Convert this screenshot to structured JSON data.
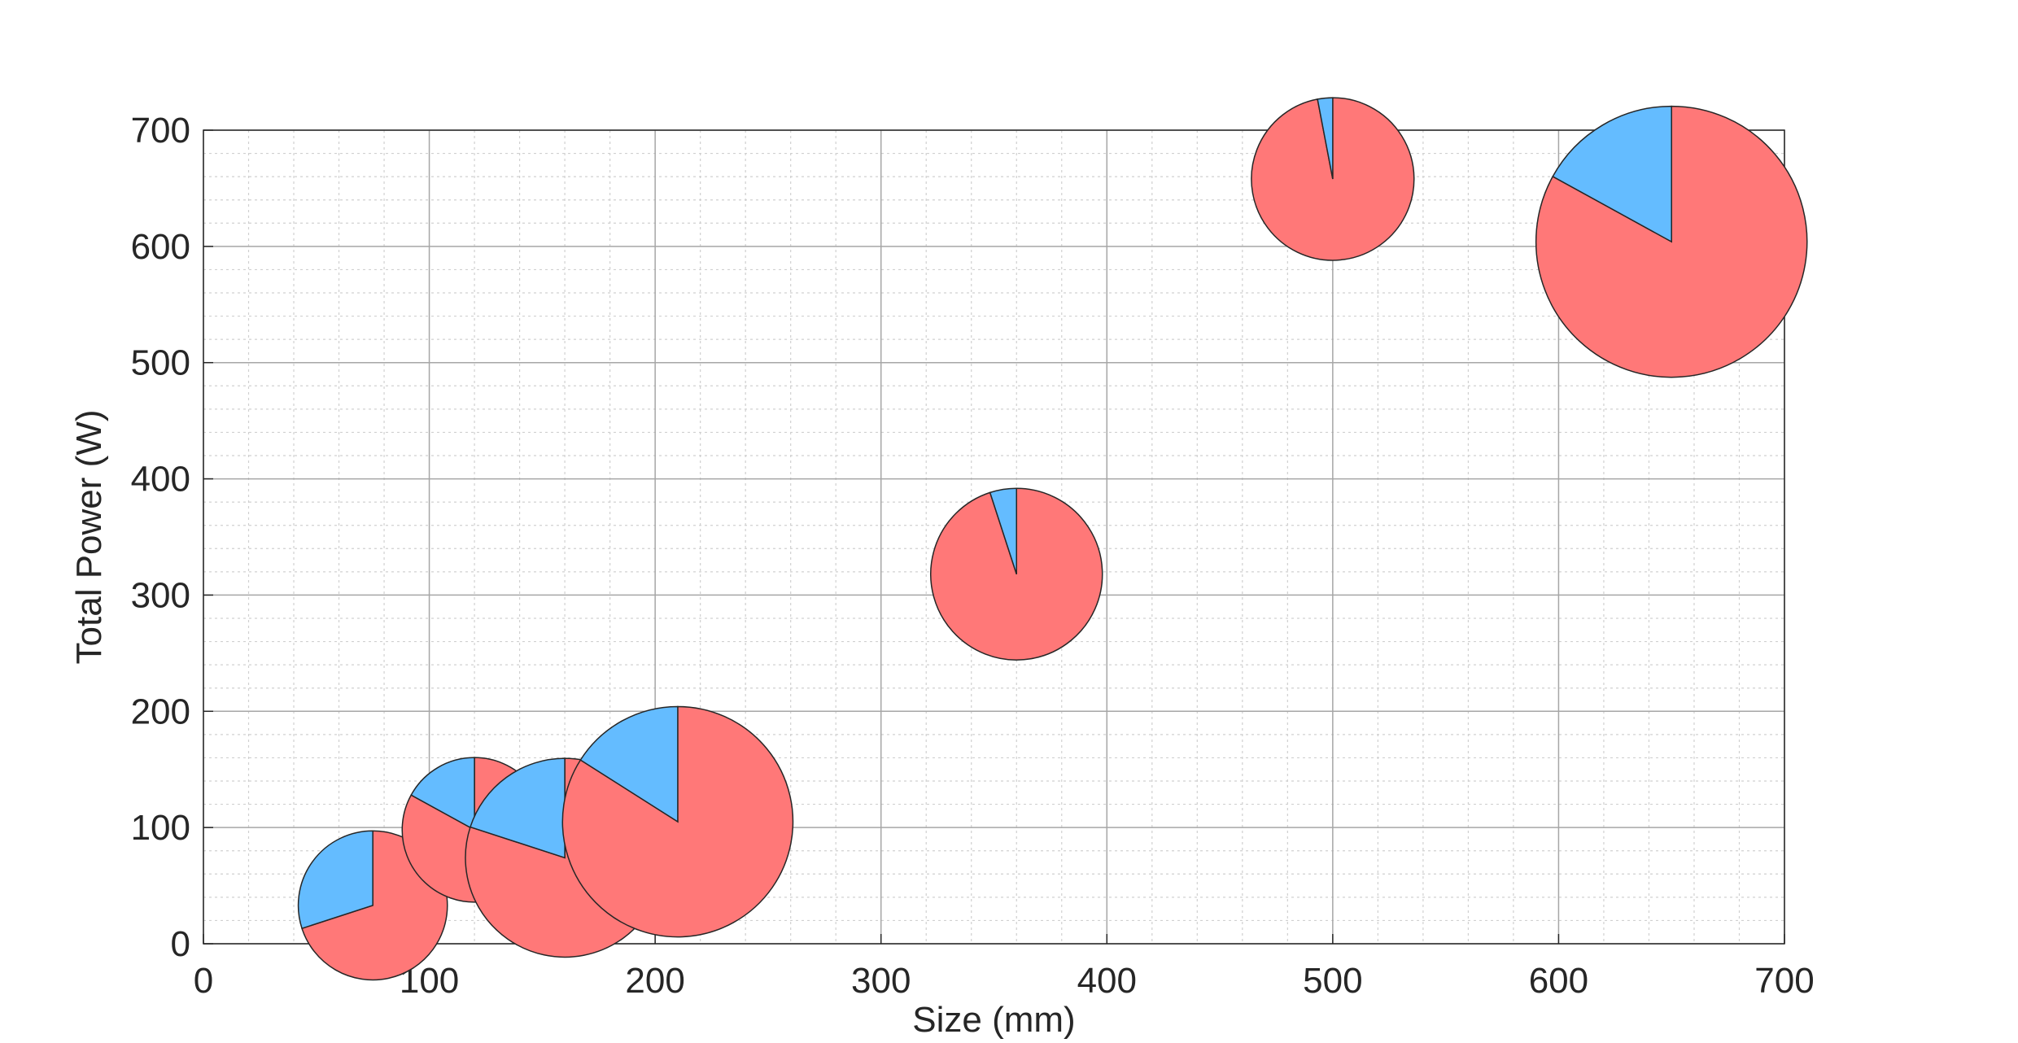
{
  "chart_data": {
    "type": "scatter",
    "subtype": "pie-bubble",
    "title": "",
    "xlabel": "Size (mm)",
    "ylabel": "Total Power (W)",
    "xlim": [
      0,
      700
    ],
    "ylim": [
      0,
      700
    ],
    "xticks": [
      0,
      100,
      200,
      300,
      400,
      500,
      600,
      700
    ],
    "yticks": [
      0,
      100,
      200,
      300,
      400,
      500,
      600,
      700
    ],
    "xminor_step": 20,
    "yminor_step": 20,
    "grid": true,
    "minor_grid": true,
    "slice_colors": [
      "#ff7878",
      "#64bcff"
    ],
    "points": [
      {
        "x": 75,
        "y": 33,
        "radius": 33,
        "fractions": [
          0.7,
          0.3
        ]
      },
      {
        "x": 120,
        "y": 98,
        "radius": 32,
        "fractions": [
          0.83,
          0.17
        ]
      },
      {
        "x": 160,
        "y": 74,
        "radius": 44,
        "fractions": [
          0.8,
          0.2
        ]
      },
      {
        "x": 210,
        "y": 105,
        "radius": 51,
        "fractions": [
          0.84,
          0.16
        ]
      },
      {
        "x": 360,
        "y": 318,
        "radius": 38,
        "fractions": [
          0.95,
          0.05
        ]
      },
      {
        "x": 500,
        "y": 658,
        "radius": 36,
        "fractions": [
          0.97,
          0.03
        ]
      },
      {
        "x": 650,
        "y": 604,
        "radius": 60,
        "fractions": [
          0.83,
          0.17
        ]
      }
    ]
  }
}
